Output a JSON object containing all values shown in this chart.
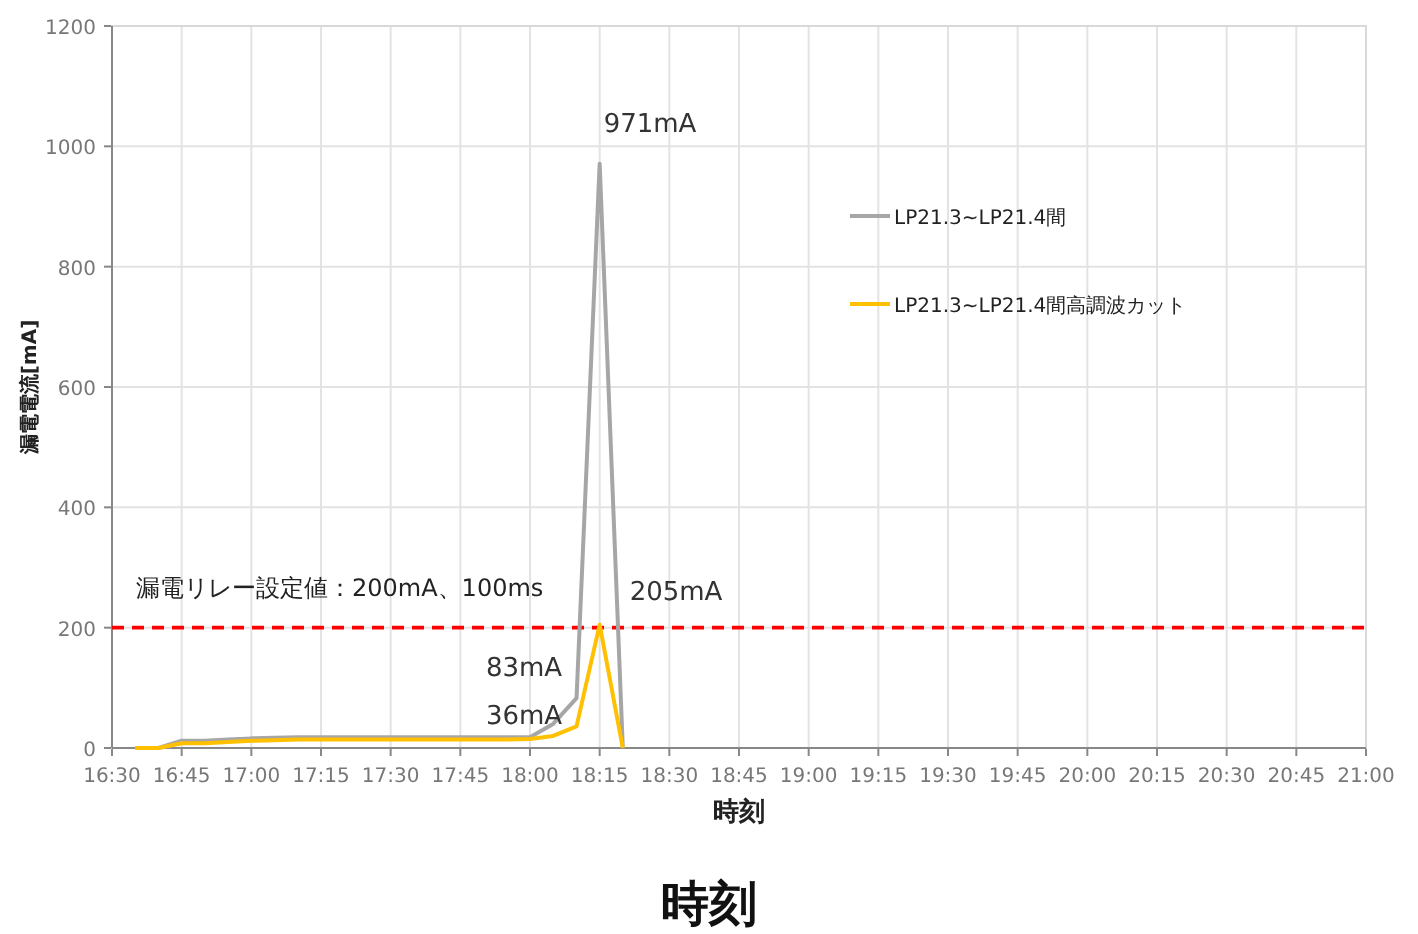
{
  "chart_data": {
    "type": "line",
    "xlabel": "時刻",
    "ylabel": "漏電電流[mA]",
    "xlim": [
      16.5,
      21
    ],
    "ylim": [
      0,
      1200
    ],
    "xticks": [
      {
        "value": 16.5,
        "label": "16:30"
      },
      {
        "value": 16.75,
        "label": "16:45"
      },
      {
        "value": 17,
        "label": "17:00"
      },
      {
        "value": 17.25,
        "label": "17:15"
      },
      {
        "value": 17.5,
        "label": "17:30"
      },
      {
        "value": 17.75,
        "label": "17:45"
      },
      {
        "value": 18,
        "label": "18:00"
      },
      {
        "value": 18.25,
        "label": "18:15"
      },
      {
        "value": 18.5,
        "label": "18:30"
      },
      {
        "value": 18.75,
        "label": "18:45"
      },
      {
        "value": 19,
        "label": "19:00"
      },
      {
        "value": 19.25,
        "label": "19:15"
      },
      {
        "value": 19.5,
        "label": "19:30"
      },
      {
        "value": 19.75,
        "label": "19:45"
      },
      {
        "value": 20,
        "label": "20:00"
      },
      {
        "value": 20.25,
        "label": "20:15"
      },
      {
        "value": 20.5,
        "label": "20:30"
      },
      {
        "value": 20.75,
        "label": "20:45"
      },
      {
        "value": 21,
        "label": "21:00"
      }
    ],
    "yticks": [
      0,
      200,
      400,
      600,
      800,
      1000,
      1200
    ],
    "x": [
      16.583,
      16.667,
      16.75,
      16.833,
      16.917,
      17,
      17.083,
      17.167,
      17.25,
      17.333,
      17.417,
      17.5,
      17.583,
      17.667,
      17.75,
      17.833,
      17.917,
      18,
      18.083,
      18.167,
      18.25,
      18.333
    ],
    "series": [
      {
        "name": "LP21.3~LP21.4間",
        "color": "#a6a6a6",
        "values": [
          0,
          0,
          12,
          12,
          14,
          16,
          17,
          18,
          18,
          18,
          18,
          18,
          18,
          18,
          18,
          18,
          18,
          18,
          40,
          83,
          971,
          0
        ]
      },
      {
        "name": "LP21.3~LP21.4間高調波カット",
        "color": "#ffc000",
        "values": [
          0,
          0,
          8,
          8,
          10,
          12,
          13,
          14,
          14,
          14,
          14,
          14,
          14,
          14,
          14,
          14,
          14,
          15,
          20,
          36,
          205,
          0
        ]
      }
    ],
    "ref_lines": [
      {
        "axis": "y",
        "value": 200,
        "label": "漏電リレー設定値：200mA、100ms",
        "color": "#ff0000",
        "line_style": "dashed"
      }
    ],
    "annotations": [
      "971mA",
      "205mA",
      "83mA",
      "36mA",
      "時刻"
    ],
    "grid": true,
    "legend": "right",
    "marker": "none",
    "line_style": "solid"
  }
}
